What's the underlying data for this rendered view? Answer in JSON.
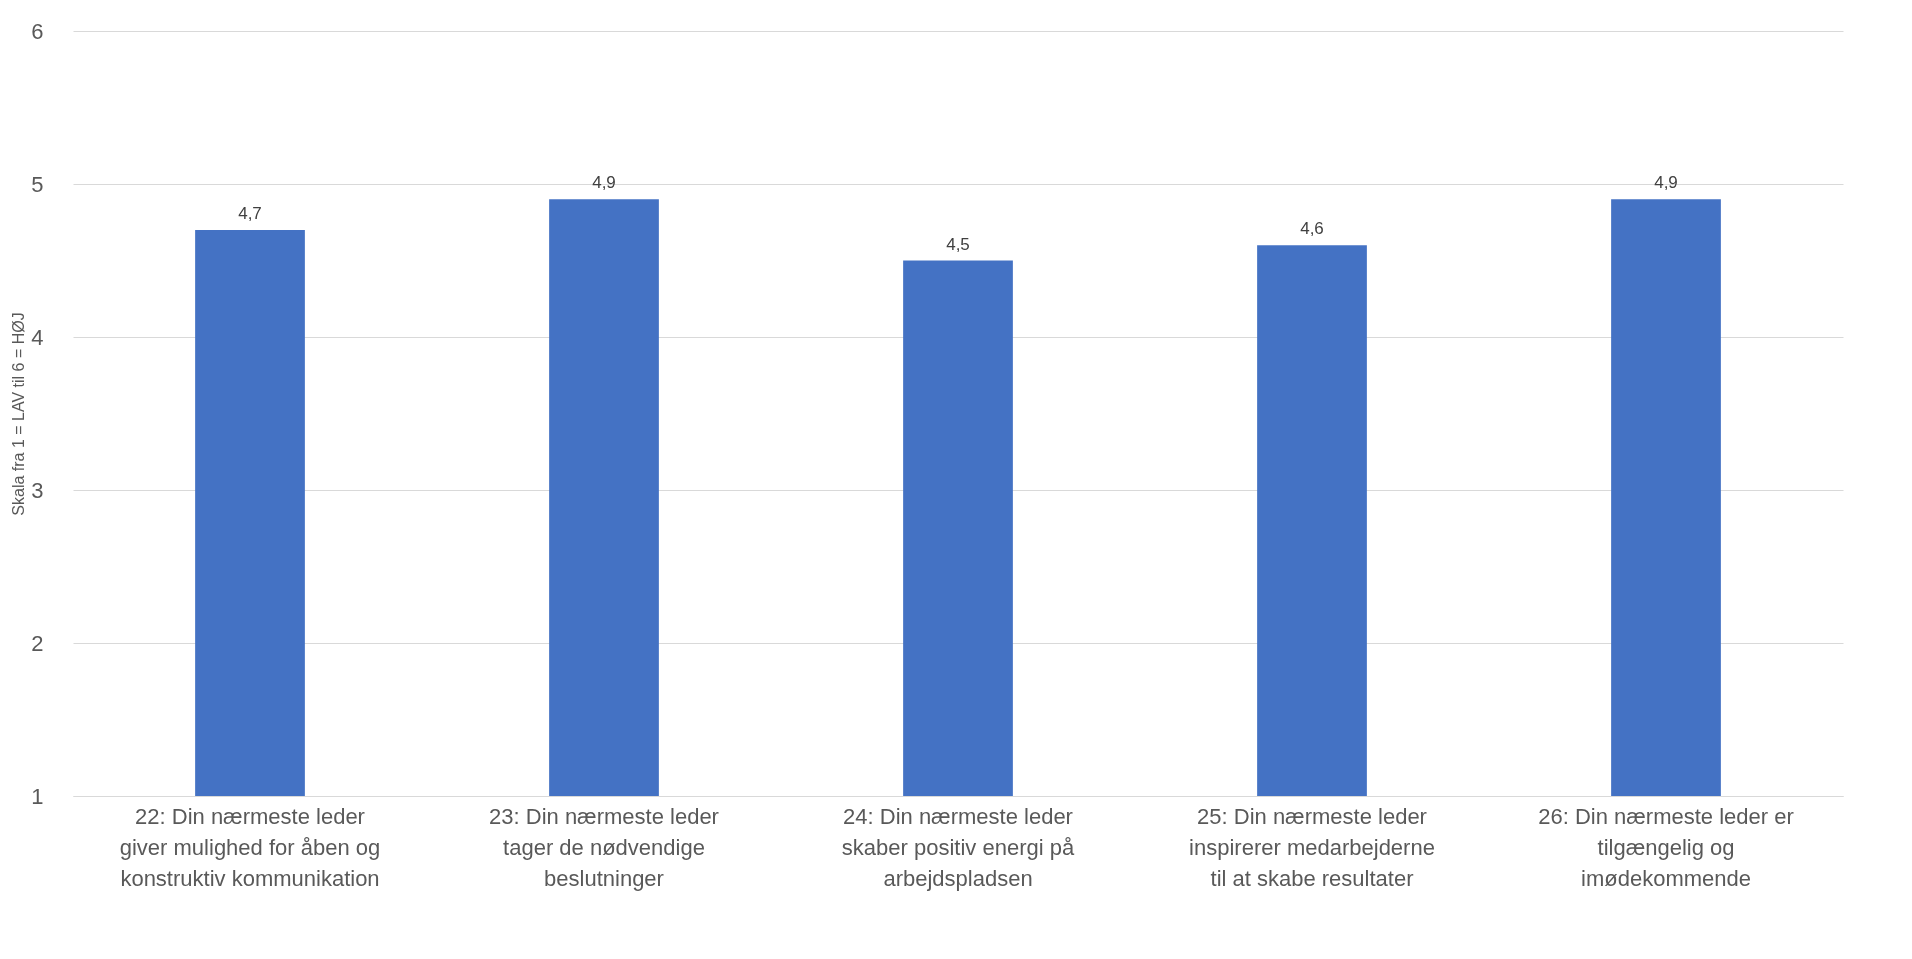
{
  "chart_data": {
    "type": "bar",
    "ylabel": "Skala fra 1 = LAV til 6 = HØJ",
    "categories": [
      "22: Din nærmeste leder giver mulighed for åben og konstruktiv kommunikation",
      "23: Din nærmeste leder tager de nødvendige beslutninger",
      "24: Din nærmeste leder skaber positiv energi på arbejdspladsen",
      "25: Din nærmeste leder inspirerer medarbejderne til at skabe resultater",
      "26: Din nærmeste leder er tilgængelig og imødekommende"
    ],
    "values": [
      4.7,
      4.9,
      4.5,
      4.6,
      4.9
    ],
    "value_labels": [
      "4,7",
      "4,9",
      "4,5",
      "4,6",
      "4,9"
    ],
    "color": "#4472c4",
    "ylim": [
      1,
      6
    ],
    "yticks": [
      1,
      2,
      3,
      4,
      5,
      6
    ],
    "grid": "y"
  }
}
